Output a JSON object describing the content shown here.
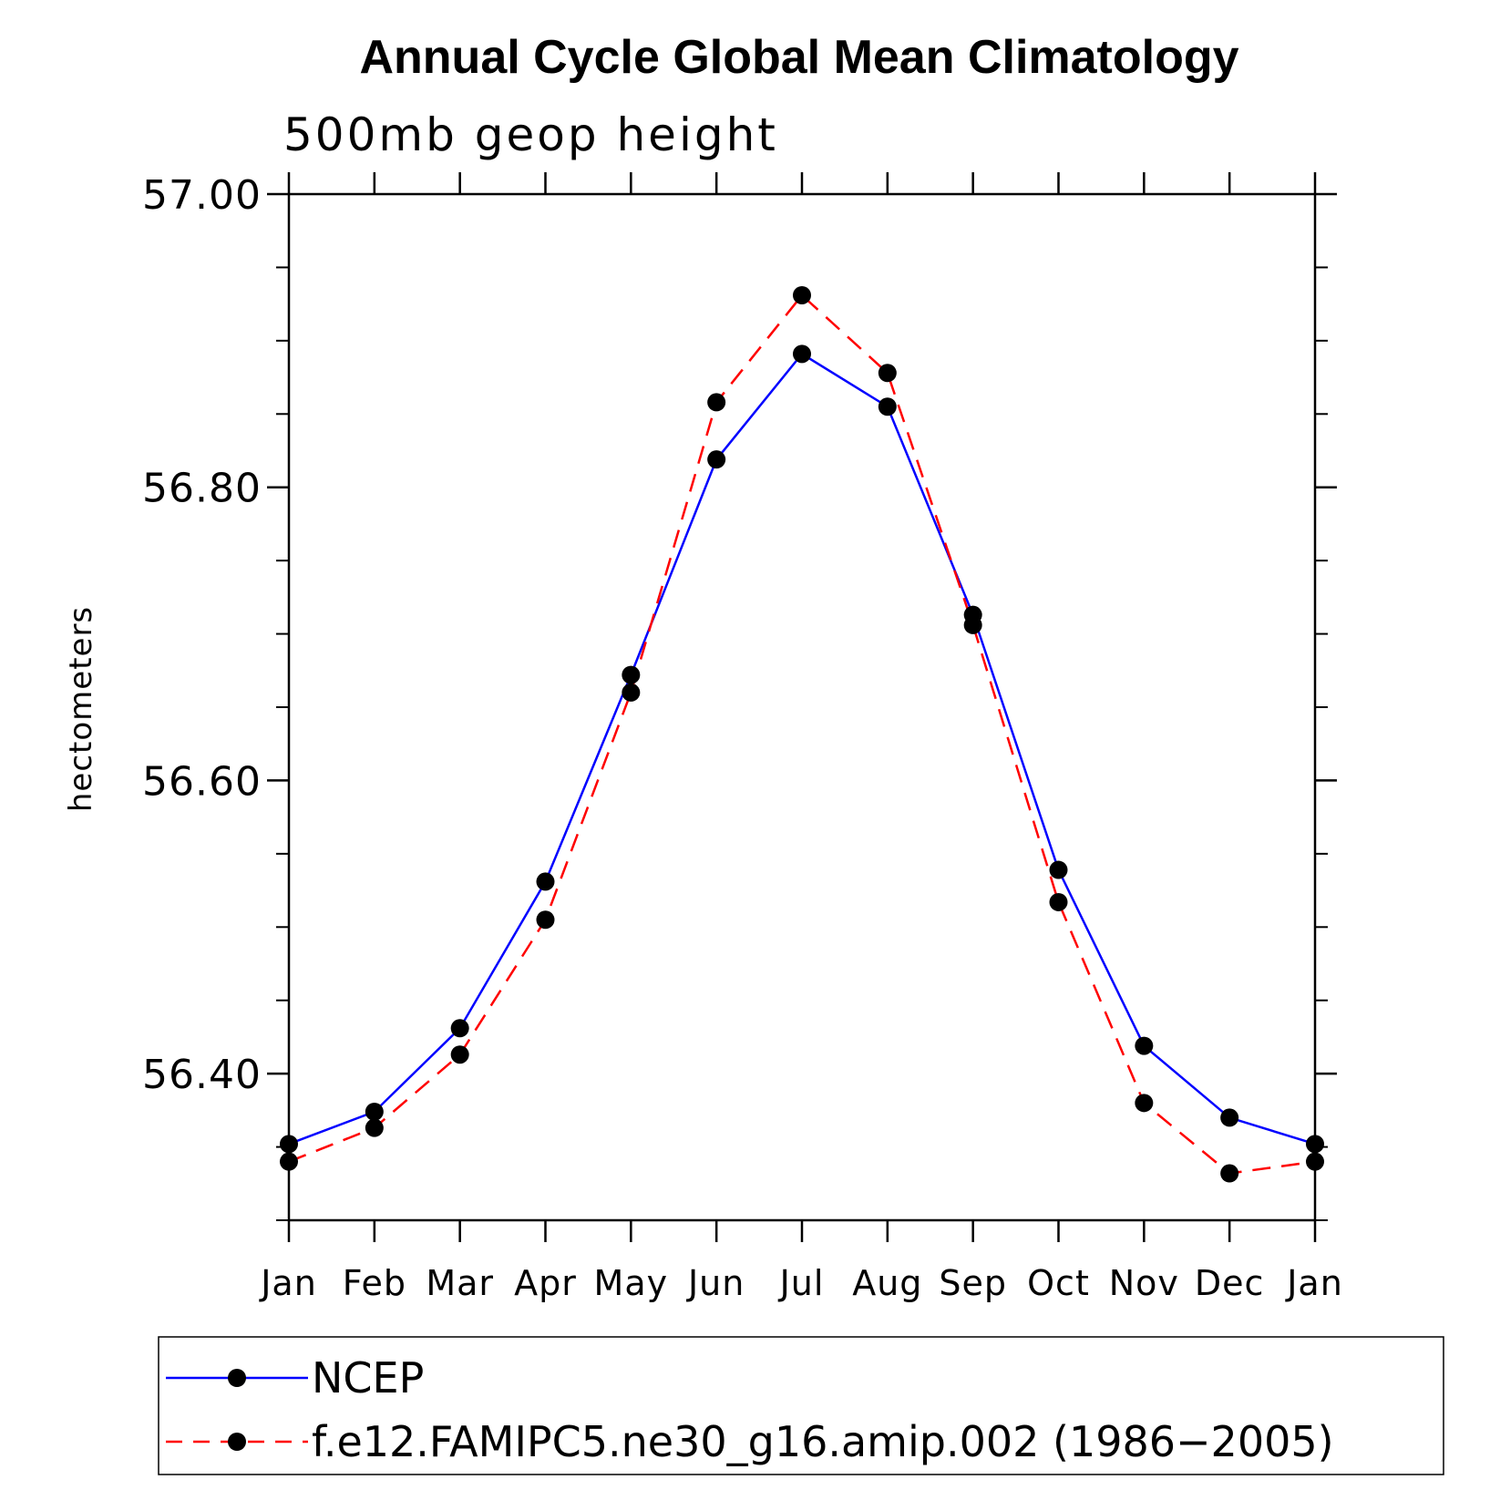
{
  "chart_data": {
    "type": "line",
    "title": "Annual Cycle Global Mean Climatology",
    "subtitle": "500mb geop height",
    "xlabel": "",
    "ylabel": "hectometers",
    "categories": [
      "Jan",
      "Feb",
      "Mar",
      "Apr",
      "May",
      "Jun",
      "Jul",
      "Aug",
      "Sep",
      "Oct",
      "Nov",
      "Dec",
      "Jan"
    ],
    "ylim": [
      56.3,
      57.0
    ],
    "yticks": [
      56.4,
      56.6,
      56.8,
      57.0
    ],
    "ytick_labels": [
      "56.40",
      "56.60",
      "56.80",
      "57.00"
    ],
    "yminor_step": 0.05,
    "series": [
      {
        "name": "NCEP",
        "color": "#0000ff",
        "style": "solid",
        "values": [
          56.352,
          56.374,
          56.431,
          56.531,
          56.672,
          56.819,
          56.891,
          56.855,
          56.713,
          56.539,
          56.419,
          56.37,
          56.352
        ]
      },
      {
        "name": "f.e12.FAMIPC5.ne30_g16.amip.002 (1986−2005)",
        "color": "#ff0000",
        "style": "dashed",
        "values": [
          56.34,
          56.363,
          56.413,
          56.505,
          56.66,
          56.858,
          56.931,
          56.878,
          56.706,
          56.517,
          56.38,
          56.332,
          56.34
        ]
      }
    ],
    "legend_position": "bottom"
  }
}
